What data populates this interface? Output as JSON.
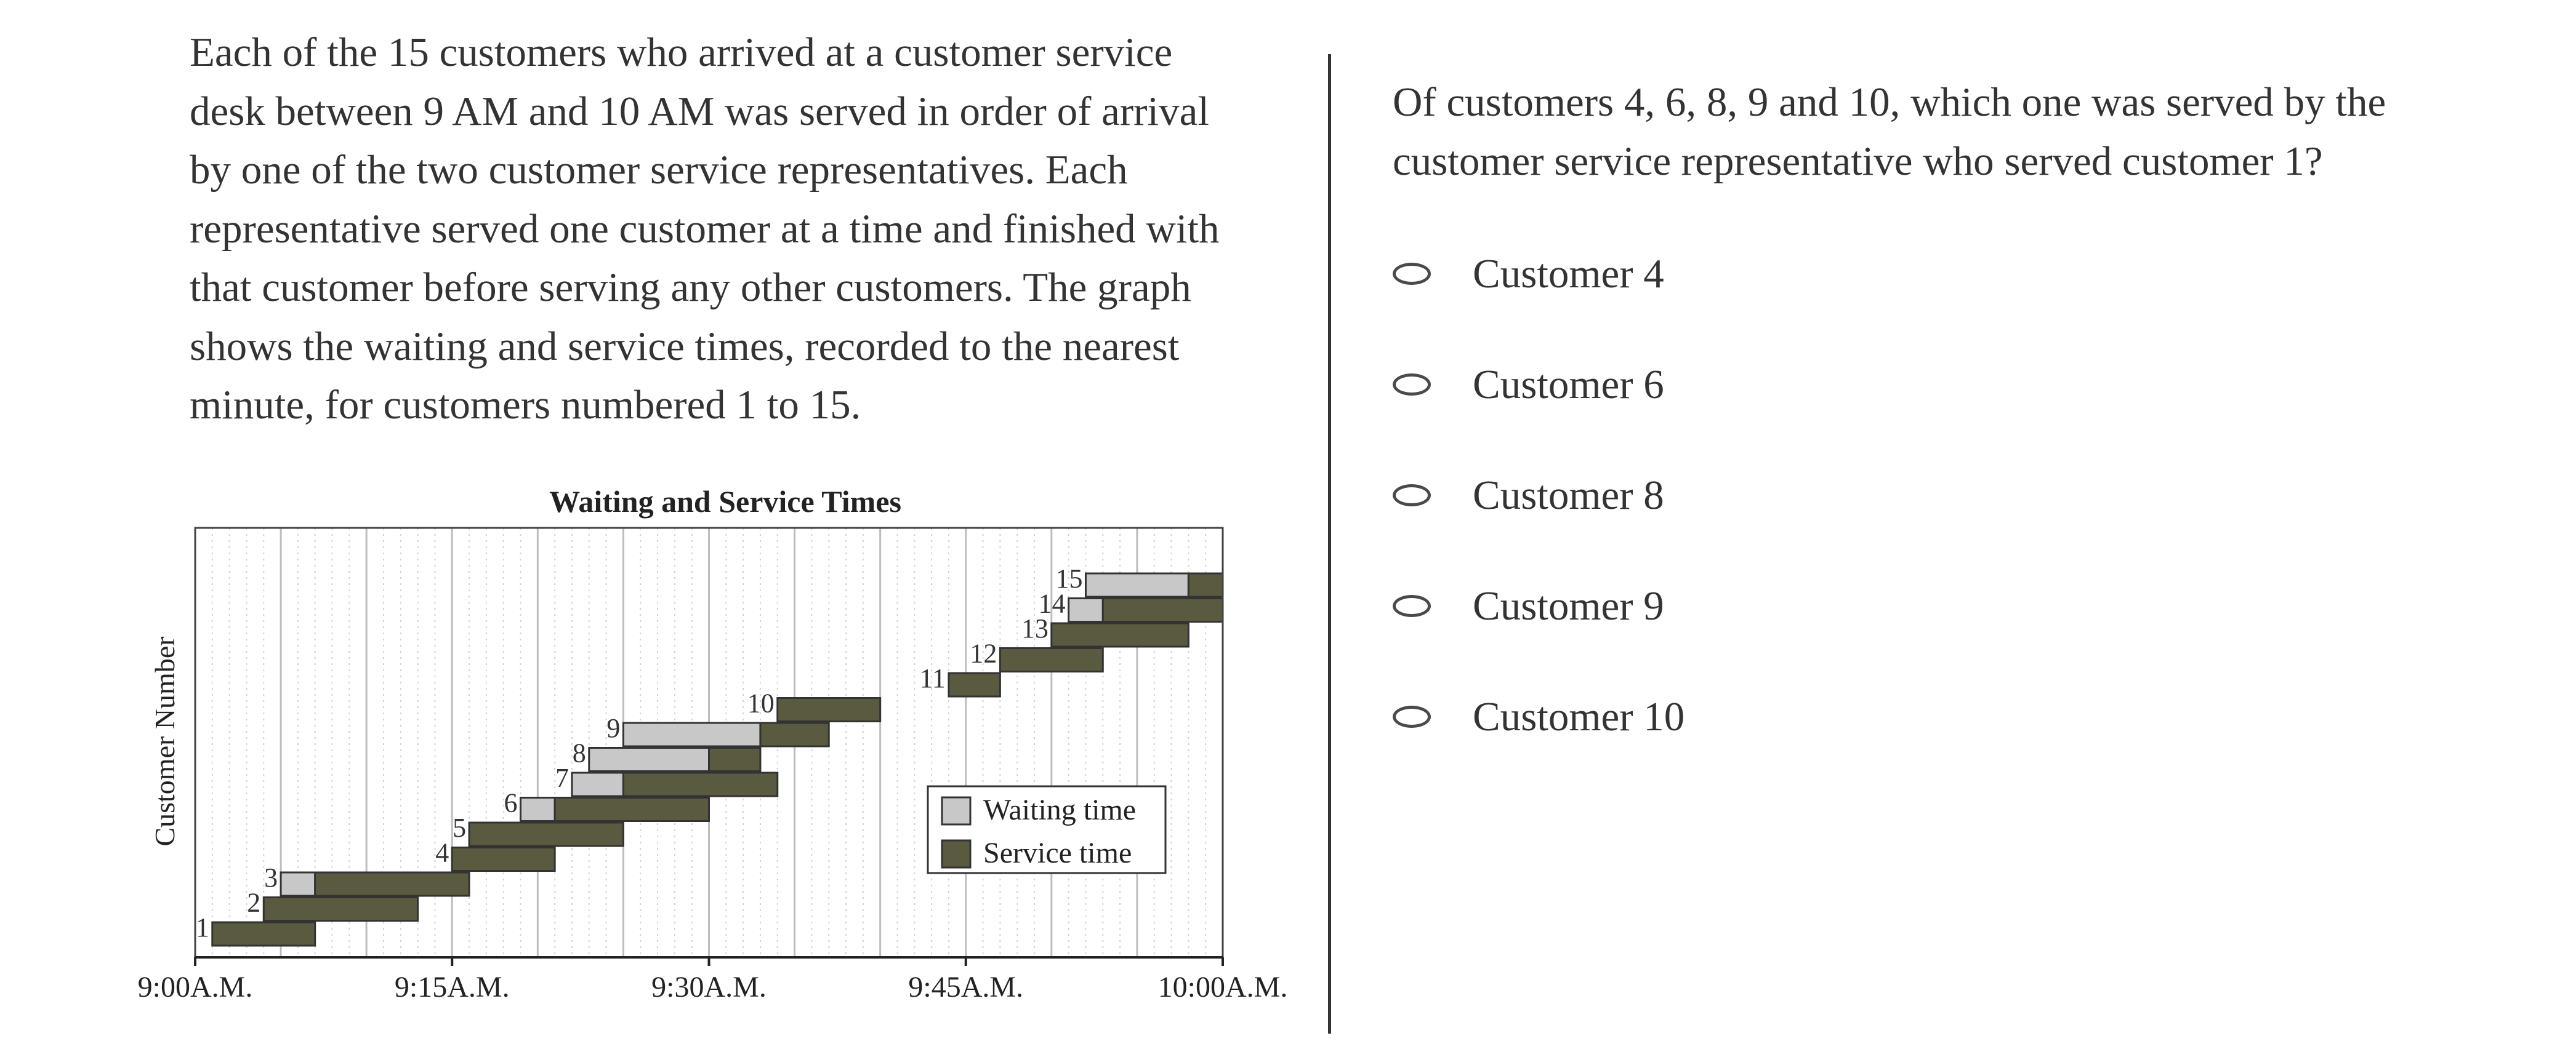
{
  "passage": "Each of the 15 customers who arrived at a customer service desk between 9 AM and 10 AM was served in order of arrival by one of the two customer service representatives. Each representative served one customer at a time and finished with that customer before serving any other customers. The graph shows the waiting and service times, recorded to the nearest minute, for customers numbered 1 to 15.",
  "question": "Of customers 4, 6, 8, 9 and 10, which one was served by the customer service representative who served customer 1?",
  "choices": [
    {
      "label": "Customer 4"
    },
    {
      "label": "Customer 6"
    },
    {
      "label": "Customer 8"
    },
    {
      "label": "Customer 9"
    },
    {
      "label": "Customer 10"
    }
  ],
  "chart_data": {
    "type": "bar",
    "title": "Waiting and Service Times",
    "ylabel": "Customer Number",
    "xlabel": "",
    "x_unit": "minutes after 9:00 A.M.",
    "xlim": [
      0,
      60
    ],
    "x_ticks": [
      {
        "value": 0,
        "label": "9:00A.M."
      },
      {
        "value": 15,
        "label": "9:15A.M."
      },
      {
        "value": 30,
        "label": "9:30A.M."
      },
      {
        "value": 45,
        "label": "9:45A.M."
      },
      {
        "value": 60,
        "label": "10:00A.M."
      }
    ],
    "grid": true,
    "legend": {
      "placement": "lower-right",
      "entries": [
        {
          "name": "Waiting time",
          "color": "#c8c8c8"
        },
        {
          "name": "Service time",
          "color": "#5a5a40"
        }
      ]
    },
    "customers": [
      {
        "number": 1,
        "arrival": 1,
        "wait": 0,
        "service": 6
      },
      {
        "number": 2,
        "arrival": 4,
        "wait": 0,
        "service": 9
      },
      {
        "number": 3,
        "arrival": 5,
        "wait": 2,
        "service": 9
      },
      {
        "number": 4,
        "arrival": 15,
        "wait": 0,
        "service": 6
      },
      {
        "number": 5,
        "arrival": 16,
        "wait": 0,
        "service": 9
      },
      {
        "number": 6,
        "arrival": 19,
        "wait": 2,
        "service": 9
      },
      {
        "number": 7,
        "arrival": 22,
        "wait": 3,
        "service": 9
      },
      {
        "number": 8,
        "arrival": 23,
        "wait": 7,
        "service": 3
      },
      {
        "number": 9,
        "arrival": 25,
        "wait": 8,
        "service": 4
      },
      {
        "number": 10,
        "arrival": 34,
        "wait": 0,
        "service": 6
      },
      {
        "number": 11,
        "arrival": 44,
        "wait": 0,
        "service": 3
      },
      {
        "number": 12,
        "arrival": 47,
        "wait": 0,
        "service": 6
      },
      {
        "number": 13,
        "arrival": 50,
        "wait": 0,
        "service": 8
      },
      {
        "number": 14,
        "arrival": 51,
        "wait": 2,
        "service": 7
      },
      {
        "number": 15,
        "arrival": 52,
        "wait": 6,
        "service": 2
      }
    ]
  },
  "colors": {
    "text": "#333333",
    "waiting": "#c8c8c8",
    "service": "#5a5a40",
    "divider": "#333333"
  }
}
